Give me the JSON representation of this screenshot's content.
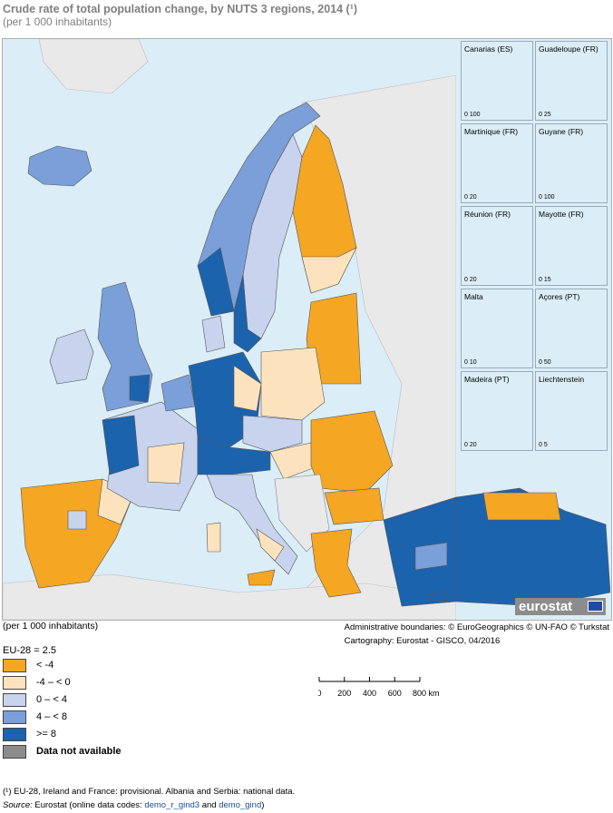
{
  "title": "Crude rate of total population change, by NUTS 3 regions, 2014 (¹)",
  "subtitle": "(per 1 000 inhabitants)",
  "insets": [
    {
      "label": "Canarias (ES)",
      "scale": "0  100"
    },
    {
      "label": "Guadeloupe (FR)",
      "scale": "0  25"
    },
    {
      "label": "Martinique (FR)",
      "scale": "0  20"
    },
    {
      "label": "Guyane (FR)",
      "scale": "0  100"
    },
    {
      "label": "Réunion (FR)",
      "scale": "0  20"
    },
    {
      "label": "Mayotte (FR)",
      "scale": "0  15"
    },
    {
      "label": "Malta",
      "scale": "0  10"
    },
    {
      "label": "Açores (PT)",
      "scale": "0  50"
    },
    {
      "label": "Madeira (PT)",
      "scale": "0  20"
    },
    {
      "label": "Liechtenstein",
      "scale": "0  5"
    }
  ],
  "brand": "eurostat",
  "unit_below": "(per 1 000 inhabitants)",
  "credits": {
    "line1": "Administrative boundaries: © EuroGeographics © UN-FAO © Turkstat",
    "line2": "Cartography: Eurostat - GISCO, 04/2016"
  },
  "eu_average": "EU-28 = 2.5",
  "legend": [
    {
      "label": "< -4",
      "color": "#f5a623"
    },
    {
      "label": "-4 – < 0",
      "color": "#fde3bd"
    },
    {
      "label": "0 – < 4",
      "color": "#c8d4ee"
    },
    {
      "label": "4 – < 8",
      "color": "#7b9fd8"
    },
    {
      "label": ">= 8",
      "color": "#1c63ad"
    },
    {
      "label": "Data not available",
      "color": "#8c8c8c"
    }
  ],
  "scale_bar": {
    "ticks": [
      "0",
      "200",
      "400",
      "600",
      "800 km"
    ]
  },
  "footnote": "(¹) EU-28, Ireland and France: provisional. Albania and Serbia: national data.",
  "source": {
    "prefix": "Source:",
    "text": " Eurostat (online data codes: ",
    "code1": "demo_r_gind3",
    "mid": " and ",
    "code2": "demo_gind",
    "end": ")"
  },
  "colors": {
    "sea": "#dbeef8",
    "non_eu_land": "#e9e9e9"
  }
}
